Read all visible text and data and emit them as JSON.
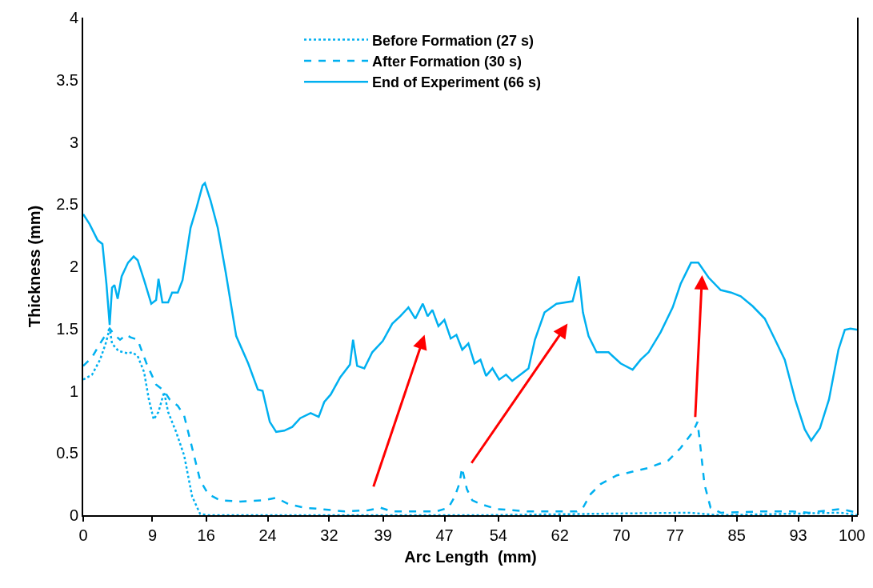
{
  "chart_data": {
    "type": "line",
    "xlabel": "Arc Length  (mm)",
    "ylabel": "Thickness (mm)",
    "xlim": [
      0,
      100.75
    ],
    "ylim": [
      0,
      4
    ],
    "xticks": [
      0,
      9,
      16,
      24,
      32,
      39,
      47,
      54,
      62,
      70,
      77,
      85,
      93,
      100
    ],
    "yticks": [
      0,
      0.5,
      1,
      1.5,
      2,
      2.5,
      3,
      3.5,
      4
    ],
    "grid": false,
    "legend": "top",
    "marker": "none",
    "series": [
      {
        "name": "Before Formation (27 s)",
        "color": "#00b0f0",
        "line_style": "dotted",
        "x": [
          0,
          1.15,
          2.19,
          2.92,
          3.44,
          3.75,
          4.58,
          5.83,
          6.35,
          7.08,
          7.92,
          8.54,
          9.17,
          9.79,
          10.52,
          11.04,
          12.08,
          13.13,
          14.17,
          15.21,
          16.25,
          30.8,
          51.7,
          78.75,
          82.9,
          98.5,
          100.75
        ],
        "values": [
          1.09,
          1.13,
          1.25,
          1.38,
          1.5,
          1.38,
          1.32,
          1.3,
          1.31,
          1.28,
          1.15,
          0.93,
          0.77,
          0.83,
          0.99,
          0.83,
          0.67,
          0.48,
          0.15,
          0.01,
          0,
          0,
          0,
          0.02,
          0,
          0.02,
          0
        ]
      },
      {
        "name": "After Formation (30 s)",
        "color": "#00b0f0",
        "line_style": "dashed",
        "x": [
          0,
          1.15,
          2.19,
          2.92,
          3.44,
          4.06,
          4.79,
          5.63,
          6.15,
          7.08,
          8.23,
          9.48,
          10.52,
          11.25,
          12.29,
          13.13,
          14.17,
          15.21,
          16.25,
          17.8,
          20.4,
          23.5,
          25.1,
          26.67,
          28.75,
          30.83,
          34,
          37.1,
          38.65,
          40.2,
          43.3,
          45.9,
          47.5,
          48.33,
          48.96,
          49.27,
          49.9,
          50.6,
          51.67,
          53.75,
          57.9,
          64.2,
          65,
          66,
          67.3,
          69.4,
          71.46,
          73.5,
          76.1,
          77.7,
          79.3,
          79.9,
          80.3,
          80.8,
          81.6,
          82.9,
          88.1,
          92.3,
          94.4,
          98.5,
          100.75
        ],
        "values": [
          1.2,
          1.27,
          1.38,
          1.45,
          1.5,
          1.45,
          1.41,
          1.45,
          1.43,
          1.41,
          1.22,
          1.05,
          1,
          0.93,
          0.88,
          0.8,
          0.54,
          0.28,
          0.17,
          0.12,
          0.11,
          0.12,
          0.14,
          0.09,
          0.06,
          0.05,
          0.03,
          0.04,
          0.06,
          0.03,
          0.03,
          0.03,
          0.06,
          0.15,
          0.26,
          0.38,
          0.21,
          0.12,
          0.09,
          0.05,
          0.03,
          0.03,
          0.06,
          0.17,
          0.25,
          0.32,
          0.35,
          0.38,
          0.44,
          0.54,
          0.67,
          0.75,
          0.54,
          0.25,
          0.06,
          0.02,
          0.03,
          0.03,
          0.02,
          0.05,
          0.02
        ]
      },
      {
        "name": "End of Experiment (66 s)",
        "color": "#00b0f0",
        "line_style": "solid",
        "x": [
          0,
          0.83,
          1.88,
          2.5,
          3.02,
          3.44,
          3.75,
          4.06,
          4.48,
          5,
          5.83,
          6.56,
          7.08,
          7.92,
          8.85,
          9.48,
          9.79,
          10.3,
          11.04,
          11.56,
          12.3,
          12.92,
          13.44,
          13.96,
          14.69,
          15.52,
          15.83,
          16.56,
          17.5,
          18.54,
          19.9,
          21.46,
          22.71,
          23.33,
          24.27,
          25.1,
          26.15,
          27.19,
          28.23,
          29.58,
          30.63,
          31.35,
          32.19,
          33.44,
          34.69,
          35.1,
          35.63,
          36.56,
          37.6,
          38.96,
          40.2,
          41.25,
          42.3,
          43.2,
          44.17,
          44.8,
          45.42,
          46.2,
          46.98,
          47.8,
          48.54,
          49.3,
          50.1,
          50.9,
          51.67,
          52.4,
          53.23,
          54.1,
          55,
          55.8,
          56.67,
          57.92,
          58.75,
          60,
          61.56,
          63.65,
          64.48,
          65,
          65.73,
          66.77,
          68.33,
          69.9,
          71.46,
          72.5,
          73.54,
          75.1,
          76.67,
          77.71,
          79.06,
          80,
          81.35,
          82.92,
          84.27,
          85.52,
          87.08,
          88.65,
          90,
          91.25,
          92.6,
          93.85,
          94.69,
          95.83,
          97,
          98.23,
          99.06,
          99.79,
          100.75
        ],
        "values": [
          2.42,
          2.34,
          2.21,
          2.18,
          1.86,
          1.53,
          1.83,
          1.85,
          1.74,
          1.92,
          2.03,
          2.08,
          2.05,
          1.89,
          1.7,
          1.73,
          1.9,
          1.71,
          1.71,
          1.79,
          1.79,
          1.89,
          2.1,
          2.31,
          2.46,
          2.65,
          2.67,
          2.53,
          2.31,
          1.95,
          1.44,
          1.22,
          1.01,
          1,
          0.75,
          0.67,
          0.68,
          0.71,
          0.78,
          0.82,
          0.79,
          0.91,
          0.97,
          1.11,
          1.21,
          1.41,
          1.2,
          1.18,
          1.31,
          1.4,
          1.54,
          1.6,
          1.67,
          1.58,
          1.7,
          1.6,
          1.65,
          1.52,
          1.57,
          1.42,
          1.45,
          1.33,
          1.38,
          1.22,
          1.25,
          1.12,
          1.18,
          1.09,
          1.13,
          1.08,
          1.12,
          1.18,
          1.41,
          1.63,
          1.7,
          1.72,
          1.92,
          1.63,
          1.44,
          1.31,
          1.31,
          1.22,
          1.17,
          1.25,
          1.31,
          1.47,
          1.67,
          1.86,
          2.03,
          2.03,
          1.91,
          1.81,
          1.79,
          1.76,
          1.68,
          1.58,
          1.41,
          1.25,
          0.93,
          0.69,
          0.6,
          0.7,
          0.93,
          1.33,
          1.49,
          1.5,
          1.49
        ]
      }
    ]
  }
}
